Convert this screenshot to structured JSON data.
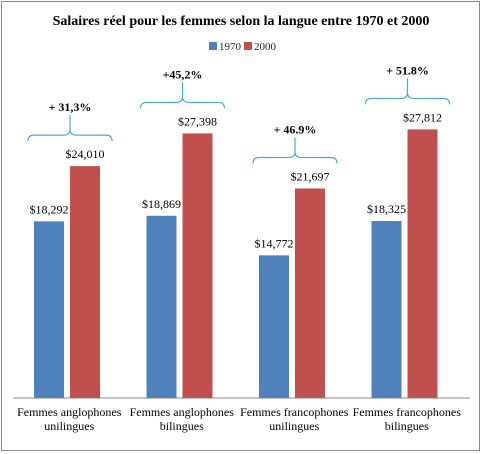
{
  "chart_data": {
    "type": "bar",
    "title": "Salaires réel pour les femmes selon la langue entre 1970 et 2000",
    "categories": [
      [
        "Femmes anglophones",
        "unilingues"
      ],
      [
        "Femmes anglophones",
        "bilingues"
      ],
      [
        "Femmes francophones",
        "unilingues"
      ],
      [
        "Femmes francophones",
        "bilingues"
      ]
    ],
    "series": [
      {
        "name": "1970",
        "color": "#4F81BD",
        "values": [
          18292,
          18869,
          14772,
          18325
        ],
        "labels": [
          "$18,292",
          "$18,869",
          "$14,772",
          "$18,325"
        ]
      },
      {
        "name": "2000",
        "color": "#C0504D",
        "values": [
          24010,
          27398,
          21697,
          27812
        ],
        "labels": [
          "$24,010",
          "$27,398",
          "$21,697",
          "$27,812"
        ]
      }
    ],
    "annotations": [
      "+ 31,3%",
      "+45,2%",
      "+ 46.9%",
      "+ 51.8%"
    ],
    "bracket_color": "#4BACC6",
    "legend_position": "top",
    "grid": false
  }
}
